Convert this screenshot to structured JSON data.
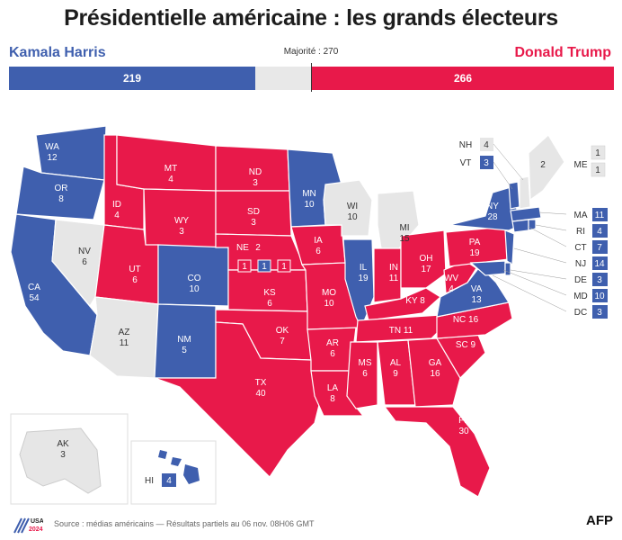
{
  "title": "Présidentielle américaine : les grands électeurs",
  "candidates": {
    "left": "Kamala Harris",
    "right": "Donald Trump"
  },
  "majority_label": "Majorité : 270",
  "totals": {
    "harris": "219",
    "trump": "266"
  },
  "colors": {
    "harris": "#3f5fae",
    "trump": "#e8194a",
    "undecided": "#e6e6e6"
  },
  "states": {
    "WA": "12",
    "OR": "8",
    "CA": "54",
    "NV": "6",
    "ID": "4",
    "MT": "4",
    "WY": "3",
    "UT": "6",
    "AZ": "11",
    "CO": "10",
    "NM": "5",
    "ND": "3",
    "SD": "3",
    "NE": "2",
    "KS": "6",
    "OK": "7",
    "TX": "40",
    "MN": "10",
    "IA": "6",
    "MO": "10",
    "AR": "6",
    "LA": "8",
    "WI": "10",
    "IL": "19",
    "MI": "15",
    "IN": "11",
    "OH": "17",
    "KY": "8",
    "TN": "11",
    "MS": "6",
    "AL": "9",
    "GA": "16",
    "FL": "30",
    "SC": "9",
    "NC": "16",
    "VA": "13",
    "WV": "4",
    "PA": "19",
    "NY": "28",
    "AK": "3",
    "HI": "4",
    "ME": "2"
  },
  "ne_districts": [
    "1",
    "1",
    "1"
  ],
  "me_districts": [
    "1",
    "1"
  ],
  "side_states": [
    {
      "abbr": "NH",
      "votes": "4"
    },
    {
      "abbr": "VT",
      "votes": "3"
    },
    {
      "abbr": "MA",
      "votes": "11"
    },
    {
      "abbr": "RI",
      "votes": "4"
    },
    {
      "abbr": "CT",
      "votes": "7"
    },
    {
      "abbr": "NJ",
      "votes": "14"
    },
    {
      "abbr": "DE",
      "votes": "3"
    },
    {
      "abbr": "MD",
      "votes": "10"
    },
    {
      "abbr": "DC",
      "votes": "3"
    }
  ],
  "footer": "Source : médias américains — Résultats partiels au 06 nov. 08H06 GMT",
  "logo_text": "USA 2024",
  "brand": "AFP"
}
